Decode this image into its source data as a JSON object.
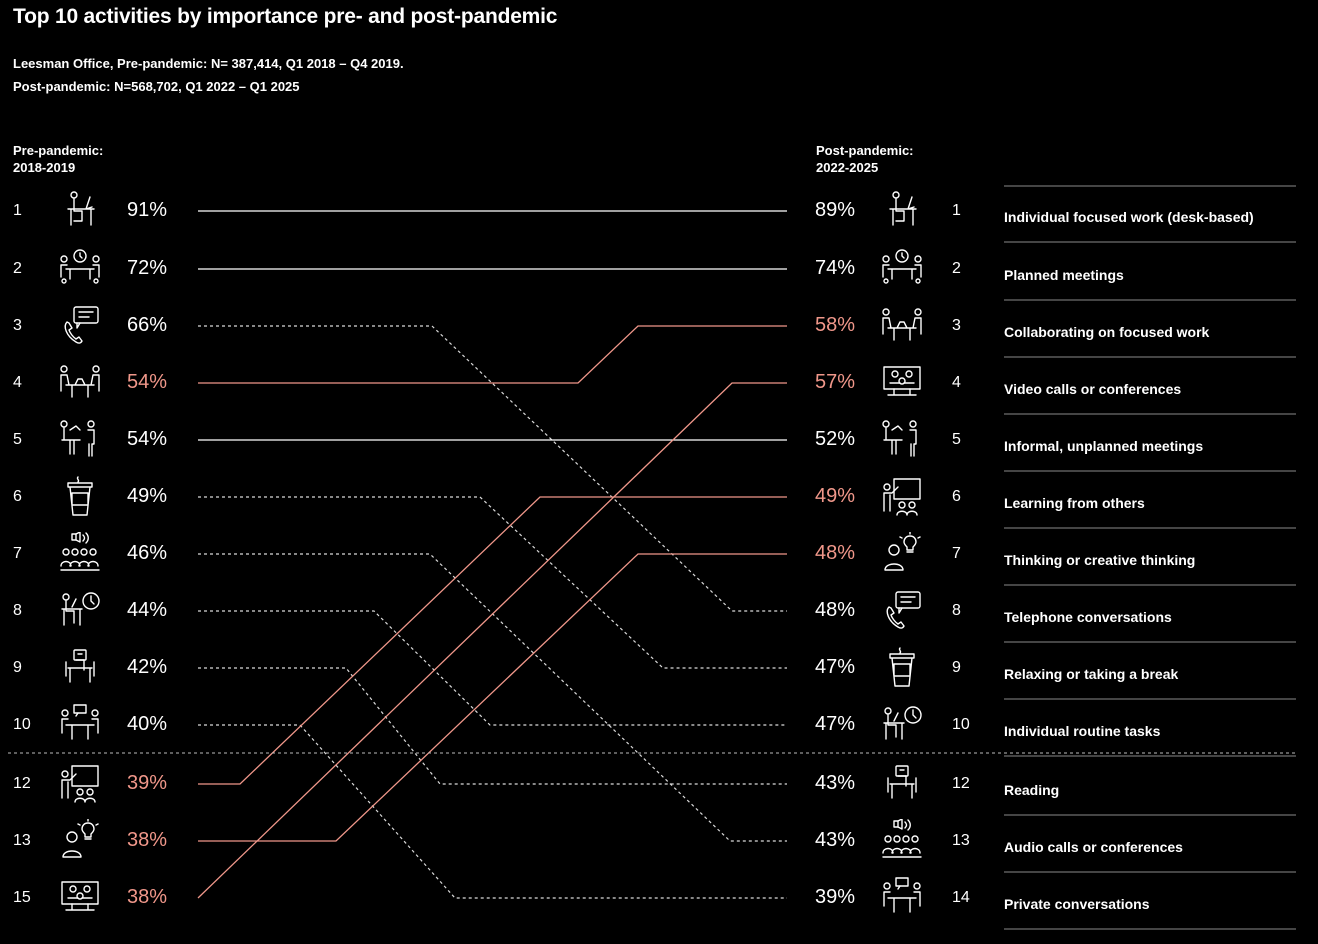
{
  "title": "Top 10 activities by importance pre- and post-pandemic",
  "subtitle_line1": "Leesman Office, Pre-pandemic: N= 387,414,  Q1 2018 – Q4 2019.",
  "subtitle_line2": "Post-pandemic: N=568,702, Q1 2022 – Q1 2025",
  "left_header": {
    "line1": "Pre-pandemic:",
    "line2": "2018-2019"
  },
  "right_header": {
    "line1": "Post-pandemic:",
    "line2": "2022-2025"
  },
  "colors": {
    "highlight": "#f0978a",
    "solid": "#ffffff",
    "dashed": "#d9d9d9"
  },
  "chart_data": {
    "type": "slope",
    "title": "Top 10 activities by importance pre- and post-pandemic",
    "left": [
      {
        "rank": "1",
        "pct": "91%",
        "icon": "desk-work-icon",
        "highlight": false
      },
      {
        "rank": "2",
        "pct": "72%",
        "icon": "planned-meeting-icon",
        "highlight": false
      },
      {
        "rank": "3",
        "pct": "66%",
        "icon": "telephone-icon",
        "highlight": false
      },
      {
        "rank": "4",
        "pct": "54%",
        "icon": "collaborating-icon",
        "highlight": true
      },
      {
        "rank": "5",
        "pct": "54%",
        "icon": "informal-meeting-icon",
        "highlight": false
      },
      {
        "rank": "6",
        "pct": "49%",
        "icon": "coffee-cup-icon",
        "highlight": false
      },
      {
        "rank": "7",
        "pct": "46%",
        "icon": "audio-call-icon",
        "highlight": false
      },
      {
        "rank": "8",
        "pct": "44%",
        "icon": "routine-task-icon",
        "highlight": false
      },
      {
        "rank": "9",
        "pct": "42%",
        "icon": "reading-icon",
        "highlight": false
      },
      {
        "rank": "10",
        "pct": "40%",
        "icon": "private-conversation-icon",
        "highlight": false
      },
      {
        "rank": "12",
        "pct": "39%",
        "icon": "learning-icon",
        "highlight": true
      },
      {
        "rank": "13",
        "pct": "38%",
        "icon": "thinking-icon",
        "highlight": true
      },
      {
        "rank": "15",
        "pct": "38%",
        "icon": "video-call-icon",
        "highlight": true
      }
    ],
    "right": [
      {
        "rank": "1",
        "pct": "89%",
        "icon": "desk-work-icon",
        "label": "Individual focused work (desk-based)",
        "highlight": false
      },
      {
        "rank": "2",
        "pct": "74%",
        "icon": "planned-meeting-icon",
        "label": "Planned meetings",
        "highlight": false
      },
      {
        "rank": "3",
        "pct": "58%",
        "icon": "collaborating-icon",
        "label": "Collaborating on focused work",
        "highlight": true
      },
      {
        "rank": "4",
        "pct": "57%",
        "icon": "video-call-icon",
        "label": "Video calls or conferences",
        "highlight": true
      },
      {
        "rank": "5",
        "pct": "52%",
        "icon": "informal-meeting-icon",
        "label": "Informal, unplanned meetings",
        "highlight": false
      },
      {
        "rank": "6",
        "pct": "49%",
        "icon": "learning-icon",
        "label": "Learning from others",
        "highlight": true
      },
      {
        "rank": "7",
        "pct": "48%",
        "icon": "thinking-icon",
        "label": "Thinking or creative thinking",
        "highlight": true
      },
      {
        "rank": "8",
        "pct": "48%",
        "icon": "telephone-icon",
        "label": "Telephone conversations",
        "highlight": false
      },
      {
        "rank": "9",
        "pct": "47%",
        "icon": "coffee-cup-icon",
        "label": "Relaxing or taking a break",
        "highlight": false
      },
      {
        "rank": "10",
        "pct": "47%",
        "icon": "routine-task-icon",
        "label": "Individual routine tasks",
        "highlight": false
      },
      {
        "rank": "12",
        "pct": "43%",
        "icon": "reading-icon",
        "label": "Reading",
        "highlight": false
      },
      {
        "rank": "13",
        "pct": "43%",
        "icon": "audio-call-icon",
        "label": "Audio calls or conferences",
        "highlight": false
      },
      {
        "rank": "14",
        "pct": "39%",
        "icon": "private-conversation-icon",
        "label": "Private conversations",
        "highlight": false
      }
    ],
    "connections": [
      {
        "activity": "Individual focused work (desk-based)",
        "from_row": 0,
        "to_row": 0,
        "style": "solid"
      },
      {
        "activity": "Planned meetings",
        "from_row": 1,
        "to_row": 1,
        "style": "solid"
      },
      {
        "activity": "Telephone conversations",
        "from_row": 2,
        "to_row": 7,
        "style": "dashed"
      },
      {
        "activity": "Collaborating on focused work",
        "from_row": 3,
        "to_row": 2,
        "style": "highlight"
      },
      {
        "activity": "Informal, unplanned meetings",
        "from_row": 4,
        "to_row": 4,
        "style": "solid"
      },
      {
        "activity": "Relaxing or taking a break",
        "from_row": 5,
        "to_row": 8,
        "style": "dashed"
      },
      {
        "activity": "Audio calls or conferences",
        "from_row": 6,
        "to_row": 11,
        "style": "dashed"
      },
      {
        "activity": "Individual routine tasks",
        "from_row": 7,
        "to_row": 9,
        "style": "dashed"
      },
      {
        "activity": "Reading",
        "from_row": 8,
        "to_row": 10,
        "style": "dashed"
      },
      {
        "activity": "Private conversations",
        "from_row": 9,
        "to_row": 12,
        "style": "dashed"
      },
      {
        "activity": "Learning from others",
        "from_row": 10,
        "to_row": 5,
        "style": "highlight"
      },
      {
        "activity": "Thinking or creative thinking",
        "from_row": 11,
        "to_row": 6,
        "style": "highlight"
      },
      {
        "activity": "Video calls or conferences",
        "from_row": 12,
        "to_row": 3,
        "style": "highlight"
      }
    ]
  }
}
